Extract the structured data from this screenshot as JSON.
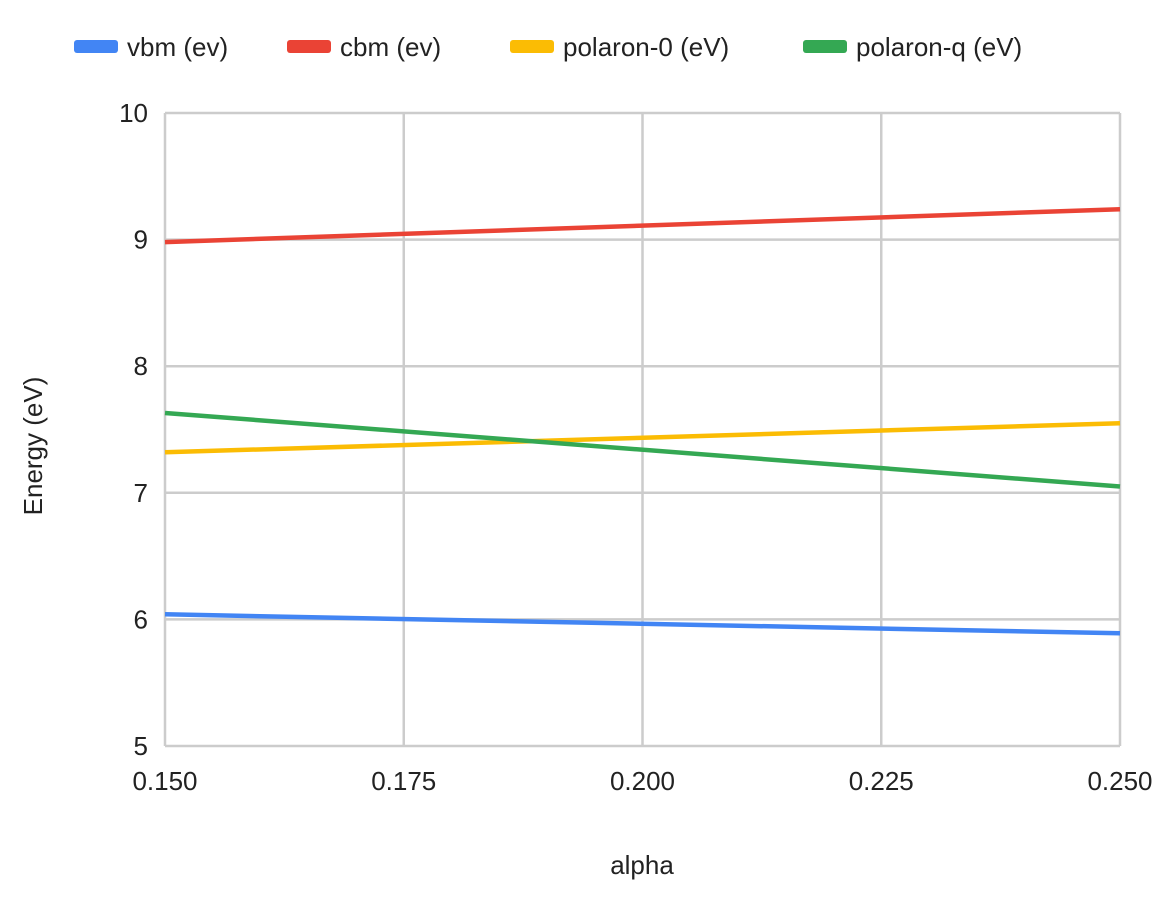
{
  "chart_data": {
    "type": "line",
    "title": "",
    "xlabel": "alpha",
    "ylabel": "Energy (eV)",
    "x": [
      0.15,
      0.25
    ],
    "xlim": [
      0.15,
      0.25
    ],
    "ylim": [
      5,
      10
    ],
    "xticks": [
      0.15,
      0.175,
      0.2,
      0.225,
      0.25
    ],
    "xtick_labels": [
      "0.150",
      "0.175",
      "0.200",
      "0.225",
      "0.250"
    ],
    "yticks": [
      5,
      6,
      7,
      8,
      9,
      10
    ],
    "ytick_labels": [
      "5",
      "6",
      "7",
      "8",
      "9",
      "10"
    ],
    "grid": true,
    "legend_position": "top",
    "series": [
      {
        "name": "vbm (ev)",
        "color": "#4285f4",
        "values": [
          6.04,
          5.89
        ]
      },
      {
        "name": "cbm (ev)",
        "color": "#ea4335",
        "values": [
          8.98,
          9.24
        ]
      },
      {
        "name": "polaron-0 (eV)",
        "color": "#fbbc04",
        "values": [
          7.32,
          7.55
        ]
      },
      {
        "name": "polaron-q (eV)",
        "color": "#34a853",
        "values": [
          7.63,
          7.05
        ]
      }
    ]
  }
}
